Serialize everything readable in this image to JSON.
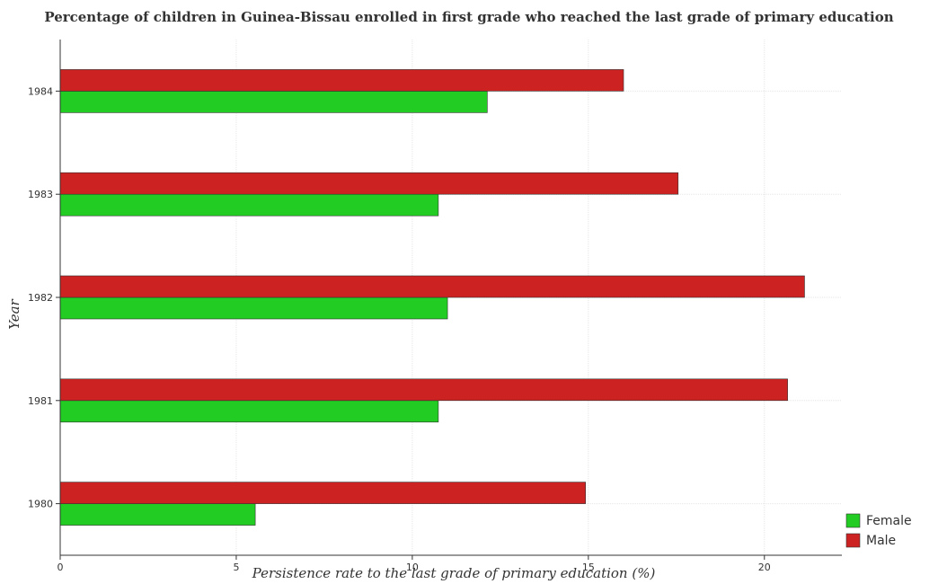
{
  "chart_data": {
    "type": "bar",
    "orientation": "horizontal",
    "title": "Percentage of children in Guinea-Bissau enrolled in first grade who reached the last grade of primary education",
    "xlabel": "Persistence rate to the last grade of primary education (%)",
    "ylabel": "Year",
    "categories": [
      "1980",
      "1981",
      "1982",
      "1983",
      "1984"
    ],
    "xlim": [
      0,
      22.2
    ],
    "xticks": [
      0,
      5,
      10,
      15,
      20
    ],
    "grid": true,
    "legend_position": "bottom-right",
    "series": [
      {
        "name": "Female",
        "color": "#22cc22",
        "values": [
          5.54,
          10.74,
          11.0,
          10.74,
          12.13
        ]
      },
      {
        "name": "Male",
        "color": "#cc2222",
        "values": [
          14.92,
          20.66,
          21.14,
          17.55,
          16.0
        ]
      }
    ]
  }
}
